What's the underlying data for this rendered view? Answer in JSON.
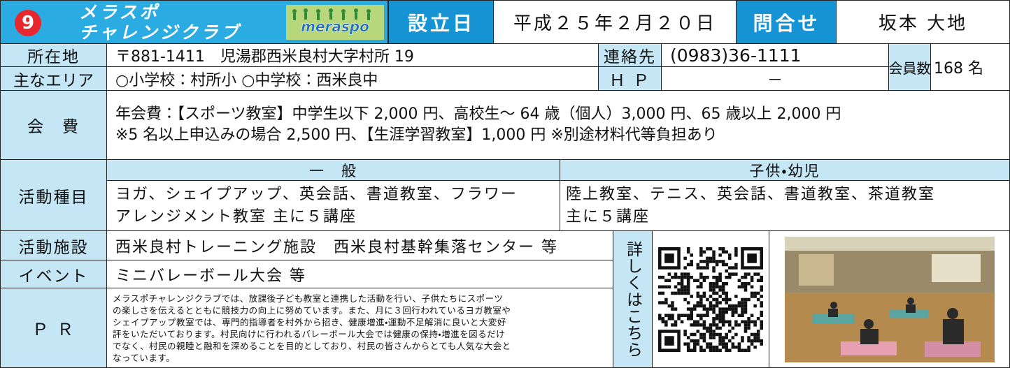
{
  "header": {
    "number": "9",
    "title_lines": [
      "メラスポ",
      "チャレンジクラブ"
    ],
    "logo_text": "meraspo",
    "established_label": "設立日",
    "established": "平成２５年２月２０日",
    "contact_label": "問合せ",
    "contact": "坂本 大地"
  },
  "rows": {
    "address": {
      "label": "所在地",
      "value": "〒881-1411　児湯郡西米良村大字村所 19"
    },
    "phone": {
      "label": "連絡先",
      "value": "(0983)36-1111"
    },
    "members": {
      "label": "会員数",
      "value": "168 名"
    },
    "area": {
      "label": "主なエリア",
      "value": "○小学校：村所小 ○中学校：西米良中"
    },
    "hp": {
      "label": "Ｈ Ｐ",
      "value": "－"
    },
    "fee": {
      "label": "会　費",
      "lines": [
        "年会費：【スポーツ教室】中学生以下 2,000 円、高校生～ 64 歳（個人）3,000 円、65 歳以上 2,000 円",
        "※5 名以上申込みの場合 2,500 円、【生涯学習教室】1,000 円 ※別途材料代等負担あり"
      ]
    },
    "activities": {
      "label": "活動種目",
      "general": {
        "heading": "一　般",
        "lines": [
          "ヨガ、シェイプアップ、英会話、書道教室、フラワー",
          "アレンジメント教室 主に５講座"
        ]
      },
      "kids": {
        "heading": "子供・幼児",
        "lines": [
          "陸上教室、テニス、英会話、書道教室、茶道教室",
          "主に５講座"
        ]
      }
    },
    "facility": {
      "label": "活動施設",
      "value": "西米良村トレーニング施設　西米良村基幹集落センター 等"
    },
    "event": {
      "label": "イベント",
      "value": "ミニバレーボール大会 等"
    },
    "pr": {
      "label": "Ｐ Ｒ",
      "lines": [
        "メラスポチャレンジクラブでは、放課後子ども教室と連携した活動を行い、子供たちにスポーツ",
        "の楽しさを伝えるとともに競技力の向上に努めています。また、月に３回行われているヨガ教室や",
        "シェイプアップ教室では、専門的指導者を村外から招き、健康増進・運動不足解消に良いと大変好",
        "評をいただいております。村民向けに行われるバレーボール大会では健康の保持・増進を図るだけ",
        "でなく、村民の親睦と融和を深めることを目的としており、村民の皆さんからとても人気な大会と",
        "なっています。"
      ]
    },
    "details": "詳しくはこちら"
  }
}
